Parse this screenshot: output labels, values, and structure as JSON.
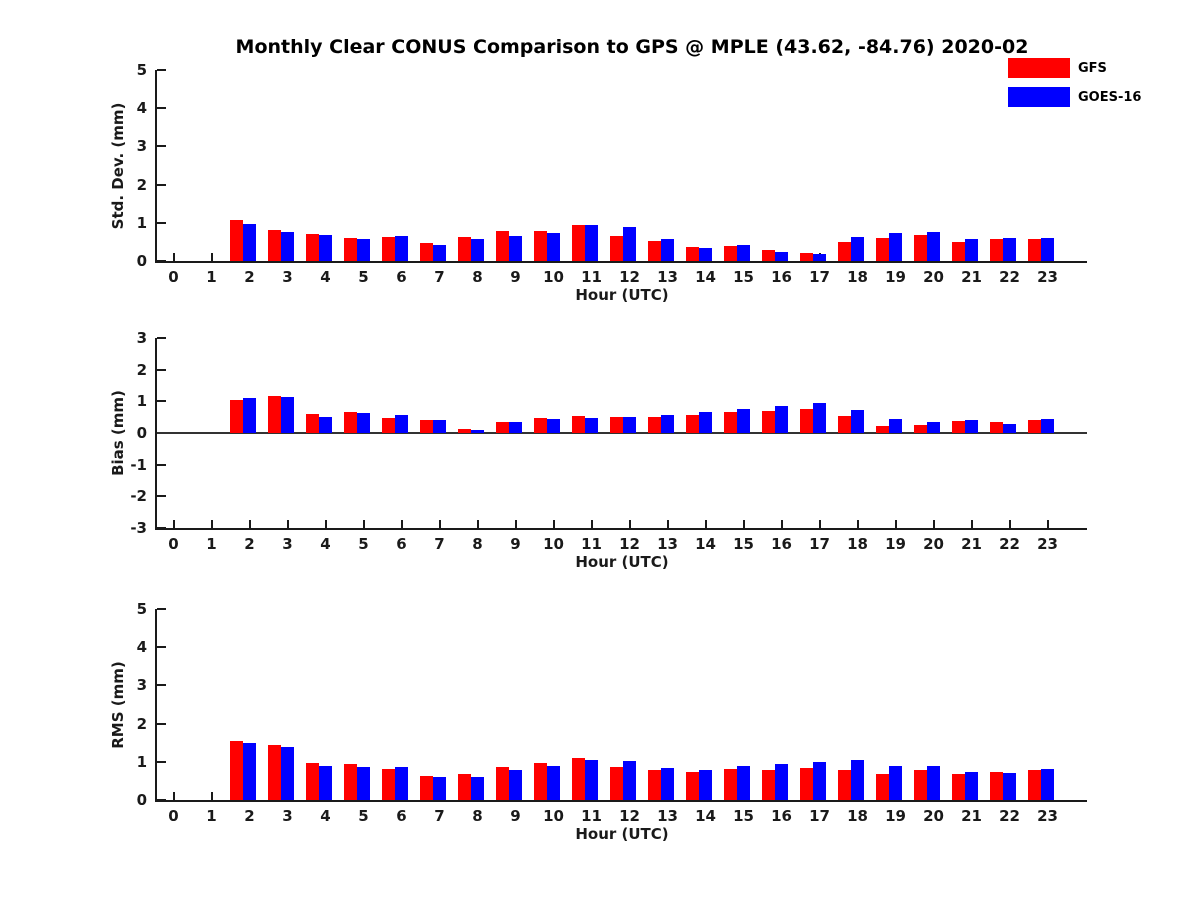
{
  "title": "Monthly Clear CONUS Comparison to GPS @ MPLE (43.62, -84.76) 2020-02",
  "legend": {
    "position": "top-right",
    "items": [
      {
        "label": "GFS",
        "color": "#ff0000"
      },
      {
        "label": "GOES-16",
        "color": "#0000ff"
      }
    ]
  },
  "colors": {
    "gfs": "#ff0000",
    "goes16": "#0000ff",
    "axis": "#1a1a1a",
    "background": "#ffffff"
  },
  "chart_data": [
    {
      "type": "bar",
      "key": "stddev",
      "ylabel": "Std. Dev. (mm)",
      "xlabel": "Hour (UTC)",
      "ylim": [
        0,
        5
      ],
      "yticks": [
        0,
        1,
        2,
        3,
        4,
        5
      ],
      "grid": false,
      "categories": [
        "0",
        "1",
        "2",
        "3",
        "4",
        "5",
        "6",
        "7",
        "8",
        "9",
        "10",
        "11",
        "12",
        "13",
        "14",
        "15",
        "16",
        "17",
        "18",
        "19",
        "20",
        "21",
        "22",
        "23"
      ],
      "series": [
        {
          "name": "GFS",
          "color": "#ff0000",
          "values": [
            0,
            0,
            1.08,
            0.82,
            0.71,
            0.6,
            0.64,
            0.46,
            0.62,
            0.79,
            0.78,
            0.93,
            0.65,
            0.53,
            0.36,
            0.4,
            0.28,
            0.22,
            0.51,
            0.6,
            0.68,
            0.5,
            0.57,
            0.58
          ]
        },
        {
          "name": "GOES-16",
          "color": "#0000ff",
          "values": [
            0,
            0,
            0.98,
            0.75,
            0.68,
            0.57,
            0.66,
            0.42,
            0.57,
            0.65,
            0.72,
            0.93,
            0.9,
            0.57,
            0.33,
            0.43,
            0.24,
            0.19,
            0.63,
            0.72,
            0.77,
            0.58,
            0.6,
            0.61
          ]
        }
      ]
    },
    {
      "type": "bar",
      "key": "bias",
      "ylabel": "Bias (mm)",
      "xlabel": "Hour (UTC)",
      "ylim": [
        -3,
        3
      ],
      "yticks": [
        -3,
        -2,
        -1,
        0,
        1,
        2,
        3
      ],
      "zero_line": true,
      "grid": false,
      "categories": [
        "0",
        "1",
        "2",
        "3",
        "4",
        "5",
        "6",
        "7",
        "8",
        "9",
        "10",
        "11",
        "12",
        "13",
        "14",
        "15",
        "16",
        "17",
        "18",
        "19",
        "20",
        "21",
        "22",
        "23"
      ],
      "series": [
        {
          "name": "GFS",
          "color": "#ff0000",
          "values": [
            0,
            0,
            1.05,
            1.18,
            0.61,
            0.66,
            0.47,
            0.42,
            0.12,
            0.35,
            0.47,
            0.55,
            0.5,
            0.49,
            0.56,
            0.66,
            0.68,
            0.76,
            0.54,
            0.22,
            0.24,
            0.38,
            0.35,
            0.42
          ]
        },
        {
          "name": "GOES-16",
          "color": "#0000ff",
          "values": [
            0,
            0,
            1.1,
            1.13,
            0.5,
            0.63,
            0.56,
            0.4,
            0.08,
            0.35,
            0.44,
            0.46,
            0.51,
            0.56,
            0.66,
            0.75,
            0.84,
            0.94,
            0.73,
            0.43,
            0.35,
            0.4,
            0.28,
            0.43
          ]
        }
      ]
    },
    {
      "type": "bar",
      "key": "rms",
      "ylabel": "RMS (mm)",
      "xlabel": "Hour (UTC)",
      "ylim": [
        0,
        5
      ],
      "yticks": [
        0,
        1,
        2,
        3,
        4,
        5
      ],
      "grid": false,
      "categories": [
        "0",
        "1",
        "2",
        "3",
        "4",
        "5",
        "6",
        "7",
        "8",
        "9",
        "10",
        "11",
        "12",
        "13",
        "14",
        "15",
        "16",
        "17",
        "18",
        "19",
        "20",
        "21",
        "22",
        "23"
      ],
      "series": [
        {
          "name": "GFS",
          "color": "#ff0000",
          "values": [
            0,
            0,
            1.55,
            1.44,
            0.97,
            0.93,
            0.81,
            0.63,
            0.67,
            0.87,
            0.97,
            1.1,
            0.87,
            0.78,
            0.73,
            0.8,
            0.79,
            0.85,
            0.78,
            0.69,
            0.78,
            0.69,
            0.73,
            0.79
          ]
        },
        {
          "name": "GOES-16",
          "color": "#0000ff",
          "values": [
            0,
            0,
            1.5,
            1.39,
            0.89,
            0.87,
            0.86,
            0.59,
            0.61,
            0.78,
            0.89,
            1.05,
            1.03,
            0.84,
            0.79,
            0.88,
            0.94,
            0.99,
            1.04,
            0.88,
            0.88,
            0.73,
            0.7,
            0.82
          ]
        }
      ]
    }
  ]
}
